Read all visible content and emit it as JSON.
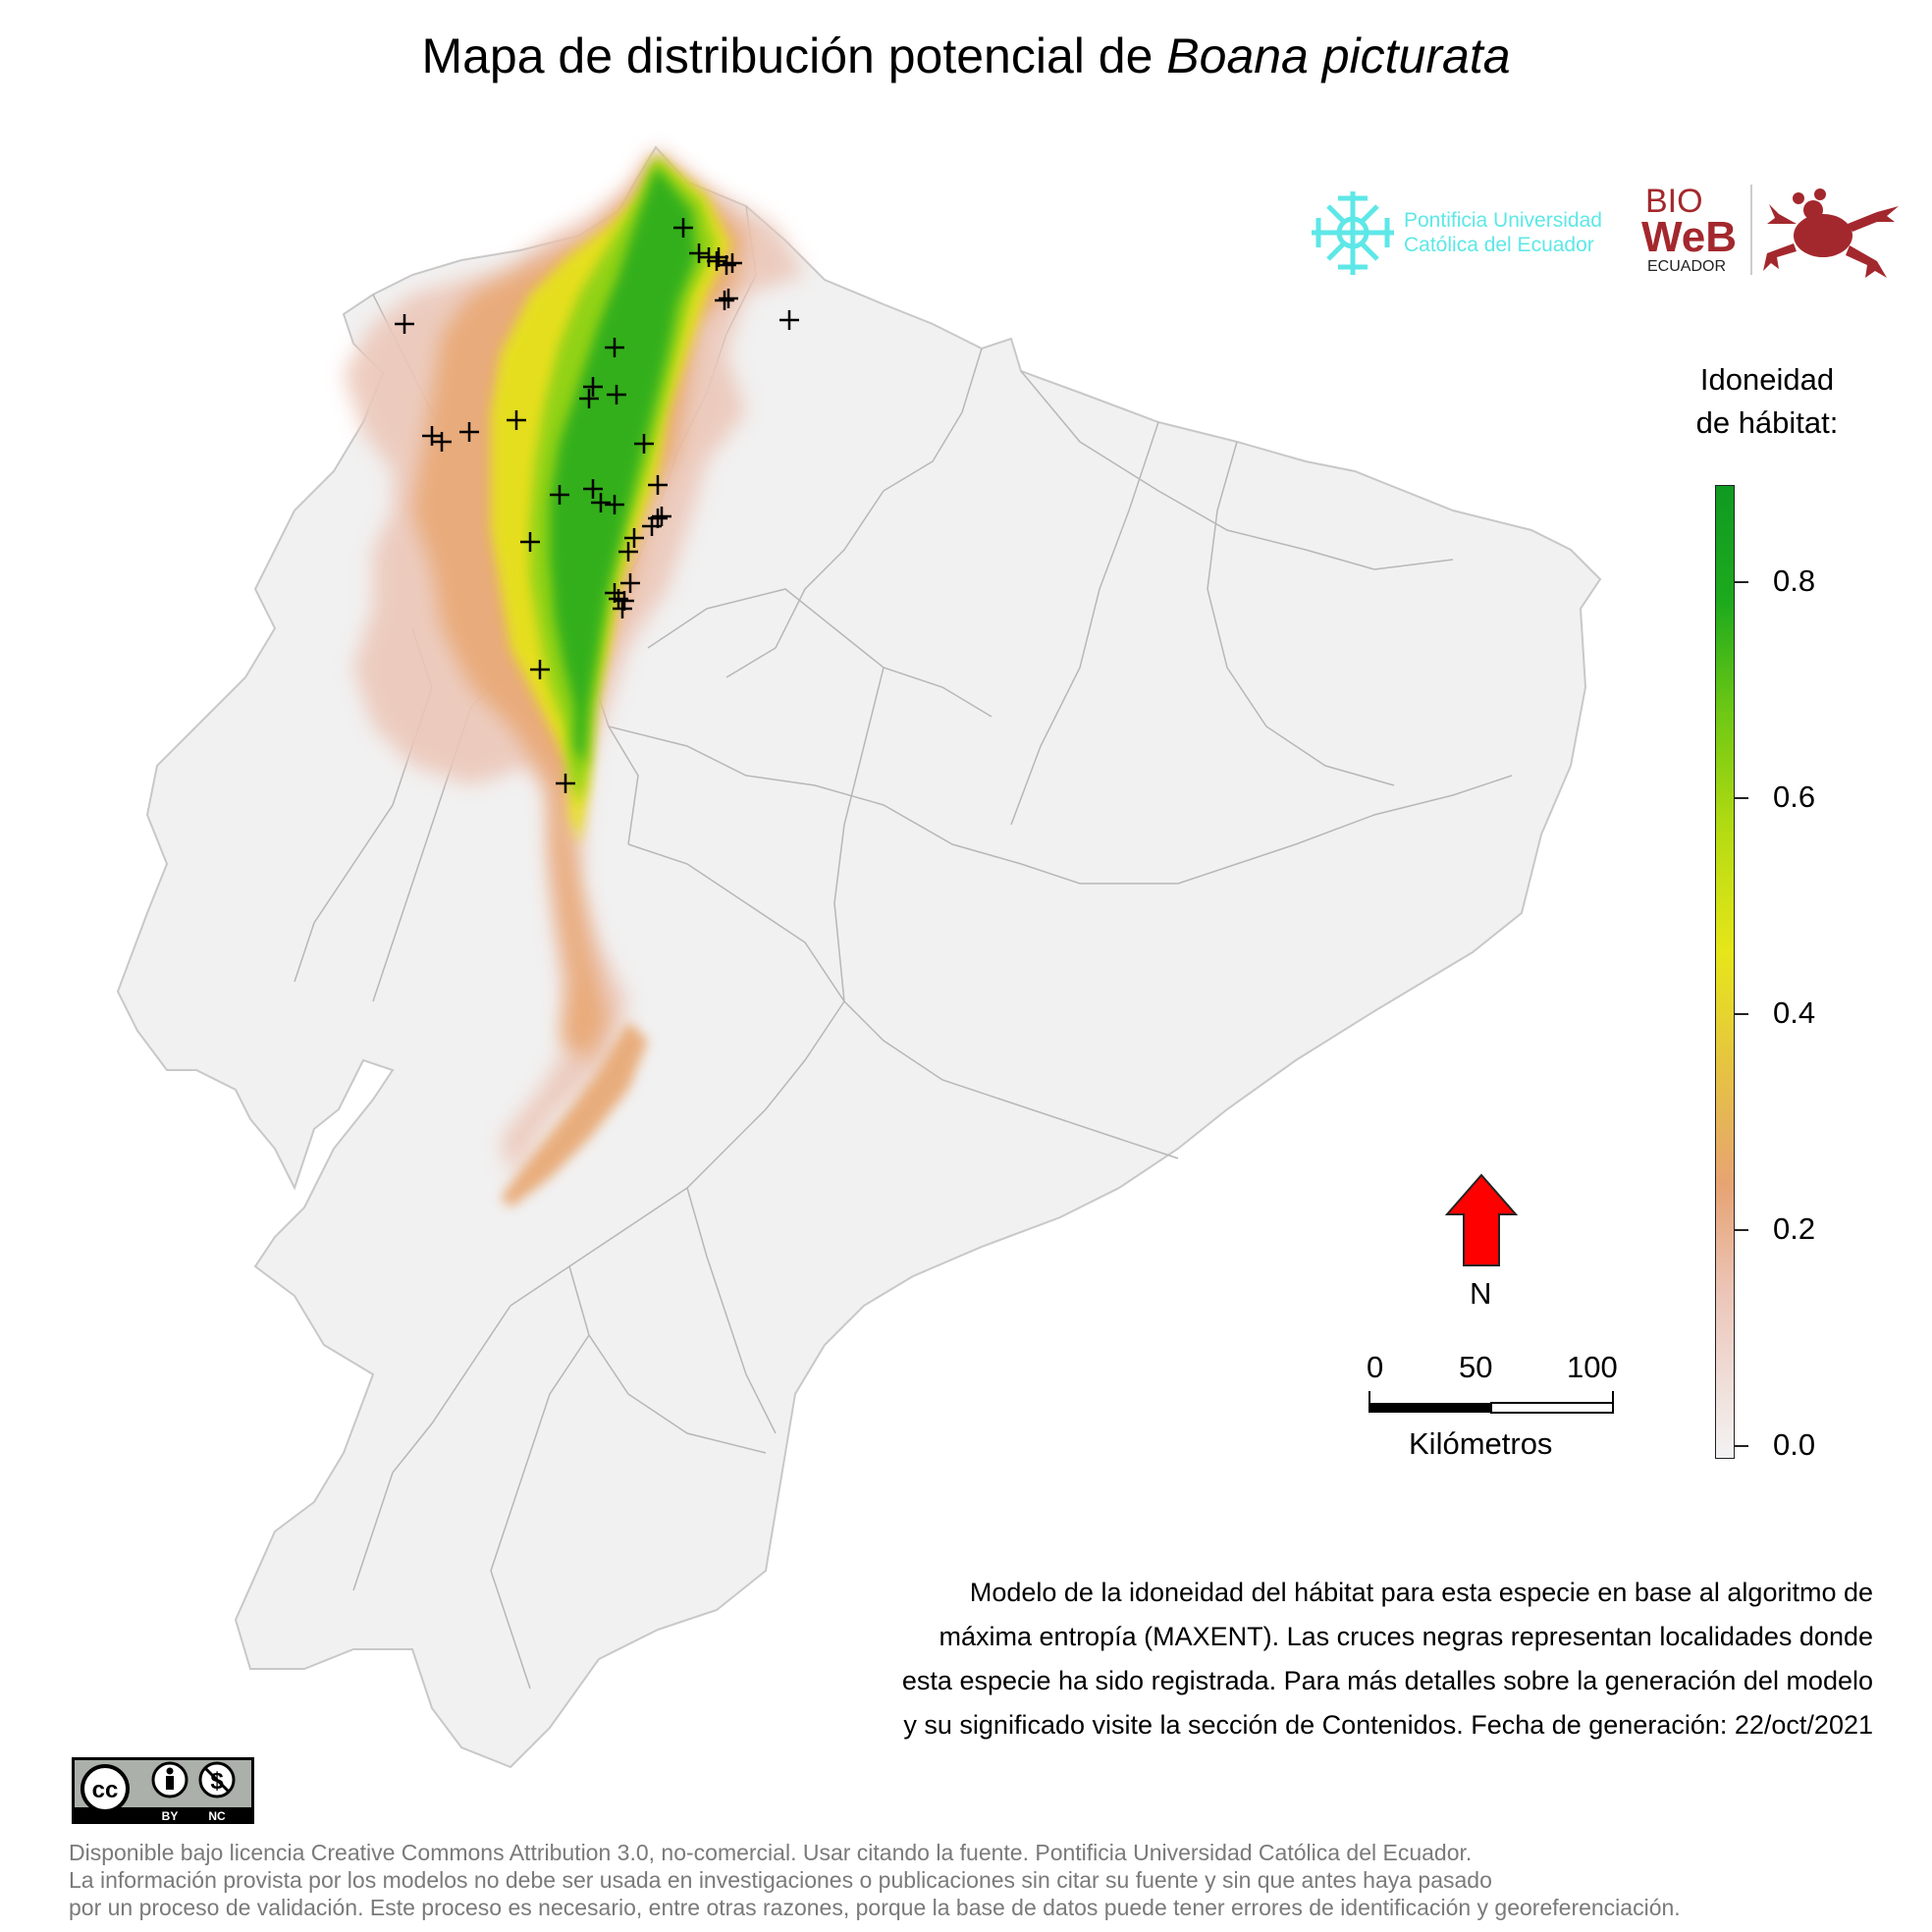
{
  "title": {
    "prefix": "Mapa de distribución potencial de ",
    "species": "Boana picturata"
  },
  "logos": {
    "puce_line1": "Pontificia Universidad",
    "puce_line2": "Católica del Ecuador",
    "bio_line1": "BIO",
    "bio_line2": "WeB",
    "bio_line3": "ECUADOR"
  },
  "legend": {
    "title_line1": "Idoneidad",
    "title_line2": "de hábitat:",
    "ticks": [
      "0.8",
      "0.6",
      "0.4",
      "0.2",
      "0.0"
    ],
    "range": [
      0.0,
      0.9
    ],
    "colors": {
      "low": "#f3f3f3",
      "mid_low": "#e7a373",
      "mid": "#e6e619",
      "high": "#6cc714",
      "max": "#0f9a22"
    }
  },
  "north_arrow": {
    "label": "N",
    "color": "#ff0000"
  },
  "scalebar": {
    "labels": [
      "0",
      "50",
      "100"
    ],
    "units": "Kilómetros"
  },
  "caption": {
    "line1": "Modelo de la idoneidad del hábitat para esta especie en base al algoritmo de",
    "line2": "máxima entropía (MAXENT). Las cruces negras representan localidades donde",
    "line3": "esta especie ha sido registrada. Para más detalles sobre la generación del modelo",
    "line4": "y su significado visite la sección de Contenidos. Fecha de generación: 22/oct/2021"
  },
  "cc_badge": {
    "by": "BY",
    "nc": "NC"
  },
  "license": {
    "line1": "Disponible bajo licencia Creative Commons Attribution 3.0, no-comercial. Usar citando la fuente. Pontificia Universidad Católica del Ecuador.",
    "line2": "La información provista por los modelos no debe ser usada en investigaciones o publicaciones sin citar su fuente y sin que antes haya pasado",
    "line3": "por un proceso de validación. Este proceso es necesario, entre otras razones, porque la base de datos puede tener errores de identificación y georeferenciación."
  },
  "map": {
    "background_color": "#f1f1f1",
    "occurrence_count": 48
  }
}
